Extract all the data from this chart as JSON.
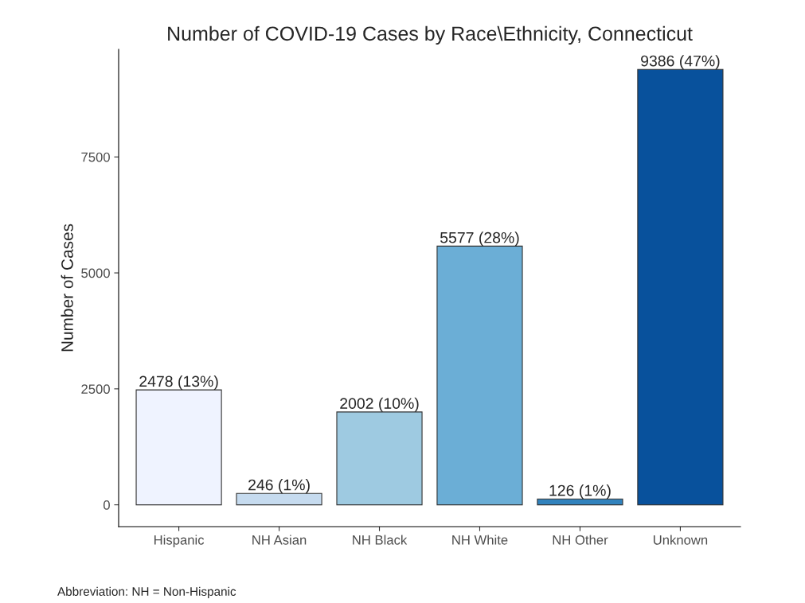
{
  "chart_data": {
    "type": "bar",
    "title": "Number of COVID-19 Cases by Race\\Ethnicity, Connecticut",
    "ylabel": "Number of Cases",
    "categories": [
      "Hispanic",
      "NH Asian",
      "NH Black",
      "NH White",
      "NH Other",
      "Unknown"
    ],
    "values": [
      2478,
      246,
      2002,
      5577,
      126,
      9386
    ],
    "colors": [
      "#eff3ff",
      "#c6dbef",
      "#9ecae1",
      "#6baed6",
      "#3182bd",
      "#08519c"
    ],
    "value_labels": [
      "2478 (13%)",
      "246 (1%)",
      "2002 (10%)",
      "5577 (28%)",
      "126 (1%)",
      "9386 (47%)"
    ],
    "ylim": [
      -470,
      9820
    ],
    "yticks": [
      0,
      2500,
      5000,
      7500
    ],
    "grid": false,
    "legend": false,
    "annotations": [
      "Abbreviation: NH = Non-Hispanic"
    ]
  }
}
